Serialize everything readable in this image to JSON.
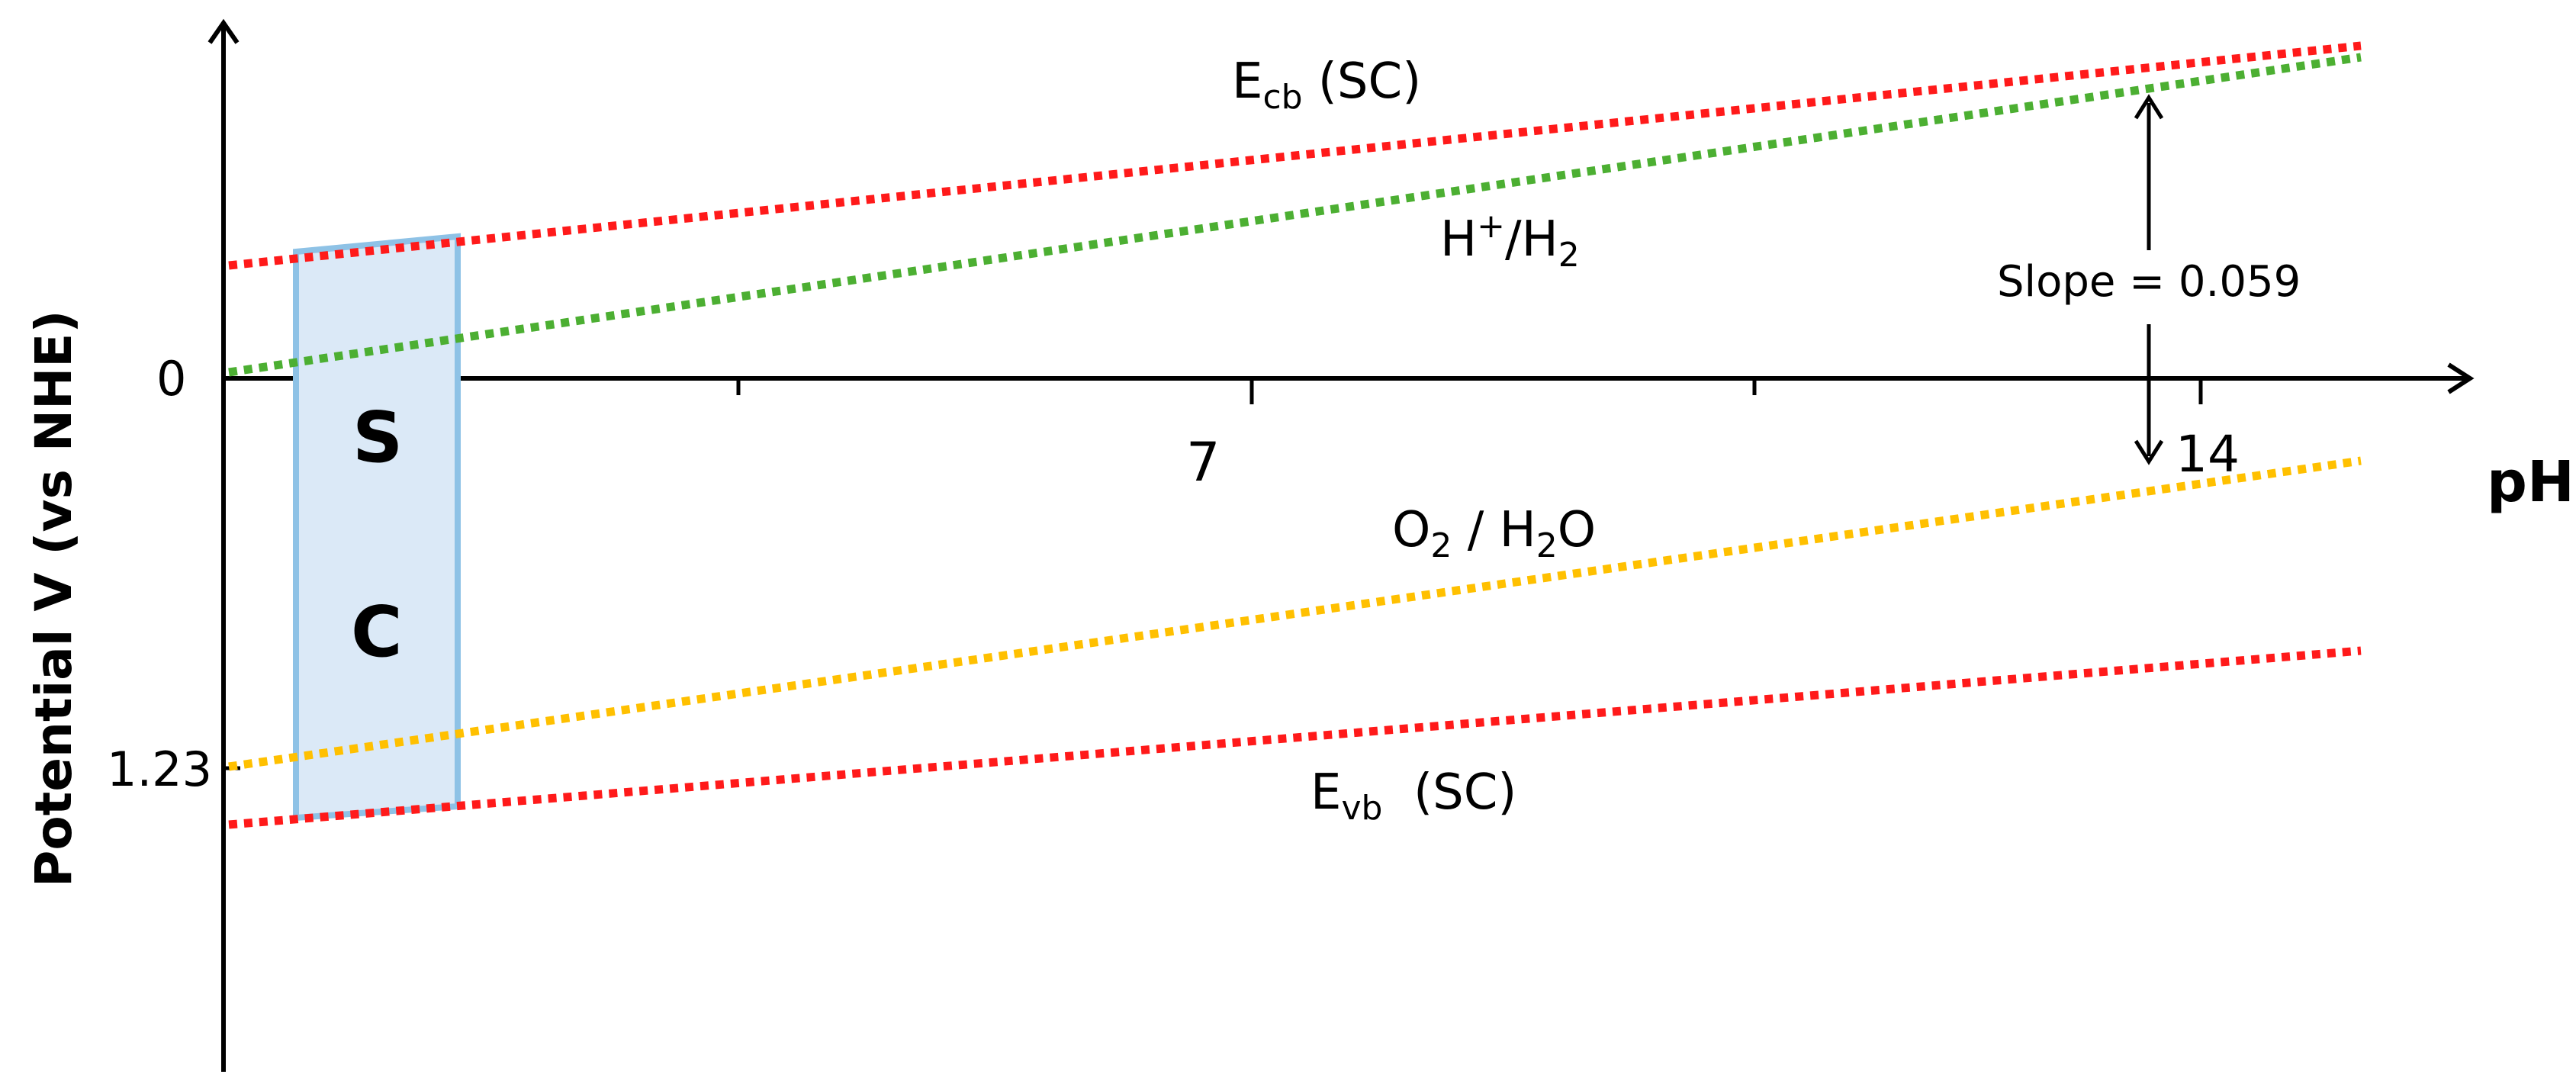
{
  "diagram": {
    "x_axis_label": "pH",
    "y_axis_label": "Potential V (vs NHE)",
    "x_ticks": [
      "7",
      "14"
    ],
    "y_ticks": [
      "0",
      "1.23"
    ],
    "sc_box_letters": [
      "S",
      "C"
    ],
    "lines": {
      "ecb": {
        "main": "E",
        "sub": "cb",
        "suffix": " (SC)",
        "color": "#ff1a1a"
      },
      "h2": {
        "main": "H",
        "sup": "+",
        "mid": "/H",
        "sub": "2",
        "color": "#4caf32"
      },
      "o2": {
        "main": "O",
        "sub": "2",
        "suffix": " / H",
        "sub2": "2",
        "end": "O",
        "color": "#ffc000"
      },
      "evb": {
        "main": "E",
        "sub": "vb",
        "suffix": "  (SC)",
        "color": "#ff1a1a"
      }
    },
    "slope_label": "Slope = 0.059",
    "sc_box_fill": "#dbe9f7",
    "sc_box_stroke": "#8ec2e6"
  }
}
